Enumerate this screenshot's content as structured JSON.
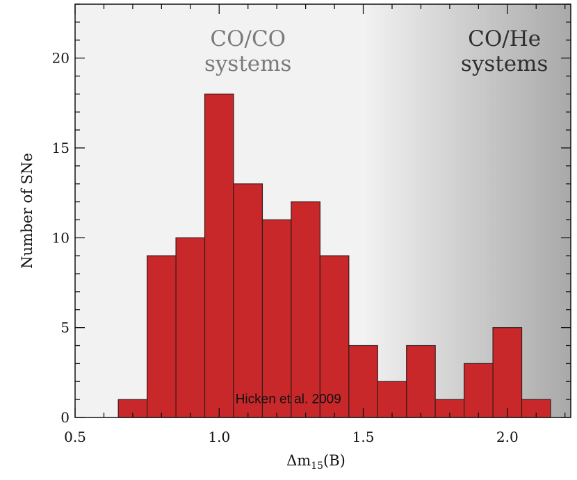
{
  "chart_data": {
    "type": "bar",
    "title": "",
    "xlabel_prefix": "Δm",
    "xlabel_sub": "15",
    "xlabel_suffix": "(B)",
    "ylabel": "Number of SNe",
    "xlim": [
      0.5,
      2.22
    ],
    "ylim": [
      0,
      23
    ],
    "bin_width": 0.1,
    "x_major_ticks": [
      0.5,
      1.0,
      1.5,
      2.0
    ],
    "x_major_tick_labels": [
      "0.5",
      "1.0",
      "1.5",
      "2.0"
    ],
    "x_minor_step": 0.1,
    "y_major_ticks": [
      0,
      5,
      10,
      15,
      20
    ],
    "y_major_tick_labels": [
      "0",
      "5",
      "10",
      "15",
      "20"
    ],
    "y_minor_step": 1,
    "bins": [
      {
        "center": 0.7,
        "value": 1
      },
      {
        "center": 0.8,
        "value": 9
      },
      {
        "center": 0.9,
        "value": 10
      },
      {
        "center": 1.0,
        "value": 18
      },
      {
        "center": 1.1,
        "value": 13
      },
      {
        "center": 1.2,
        "value": 11
      },
      {
        "center": 1.3,
        "value": 12
      },
      {
        "center": 1.4,
        "value": 9
      },
      {
        "center": 1.5,
        "value": 4
      },
      {
        "center": 1.6,
        "value": 2
      },
      {
        "center": 1.7,
        "value": 4
      },
      {
        "center": 1.8,
        "value": 1
      },
      {
        "center": 1.9,
        "value": 3
      },
      {
        "center": 2.0,
        "value": 5
      },
      {
        "center": 2.1,
        "value": 1
      }
    ],
    "annotations": [
      {
        "text": "Hicken et al. 2009",
        "x": 1.24,
        "y": 0.8
      }
    ],
    "regions": [
      {
        "line1": "CO/CO",
        "line2": "systems",
        "x": 1.1,
        "color": "#7a7a7a"
      },
      {
        "line1": "CO/He",
        "line2": "systems",
        "x": 1.99,
        "color": "#2e2e2e"
      }
    ],
    "background_gradient": {
      "start_x": 1.5,
      "end_x": 2.22,
      "from": "#f2f2f2",
      "to": "#a9a9a9"
    },
    "bar_color": "#c8282a"
  }
}
